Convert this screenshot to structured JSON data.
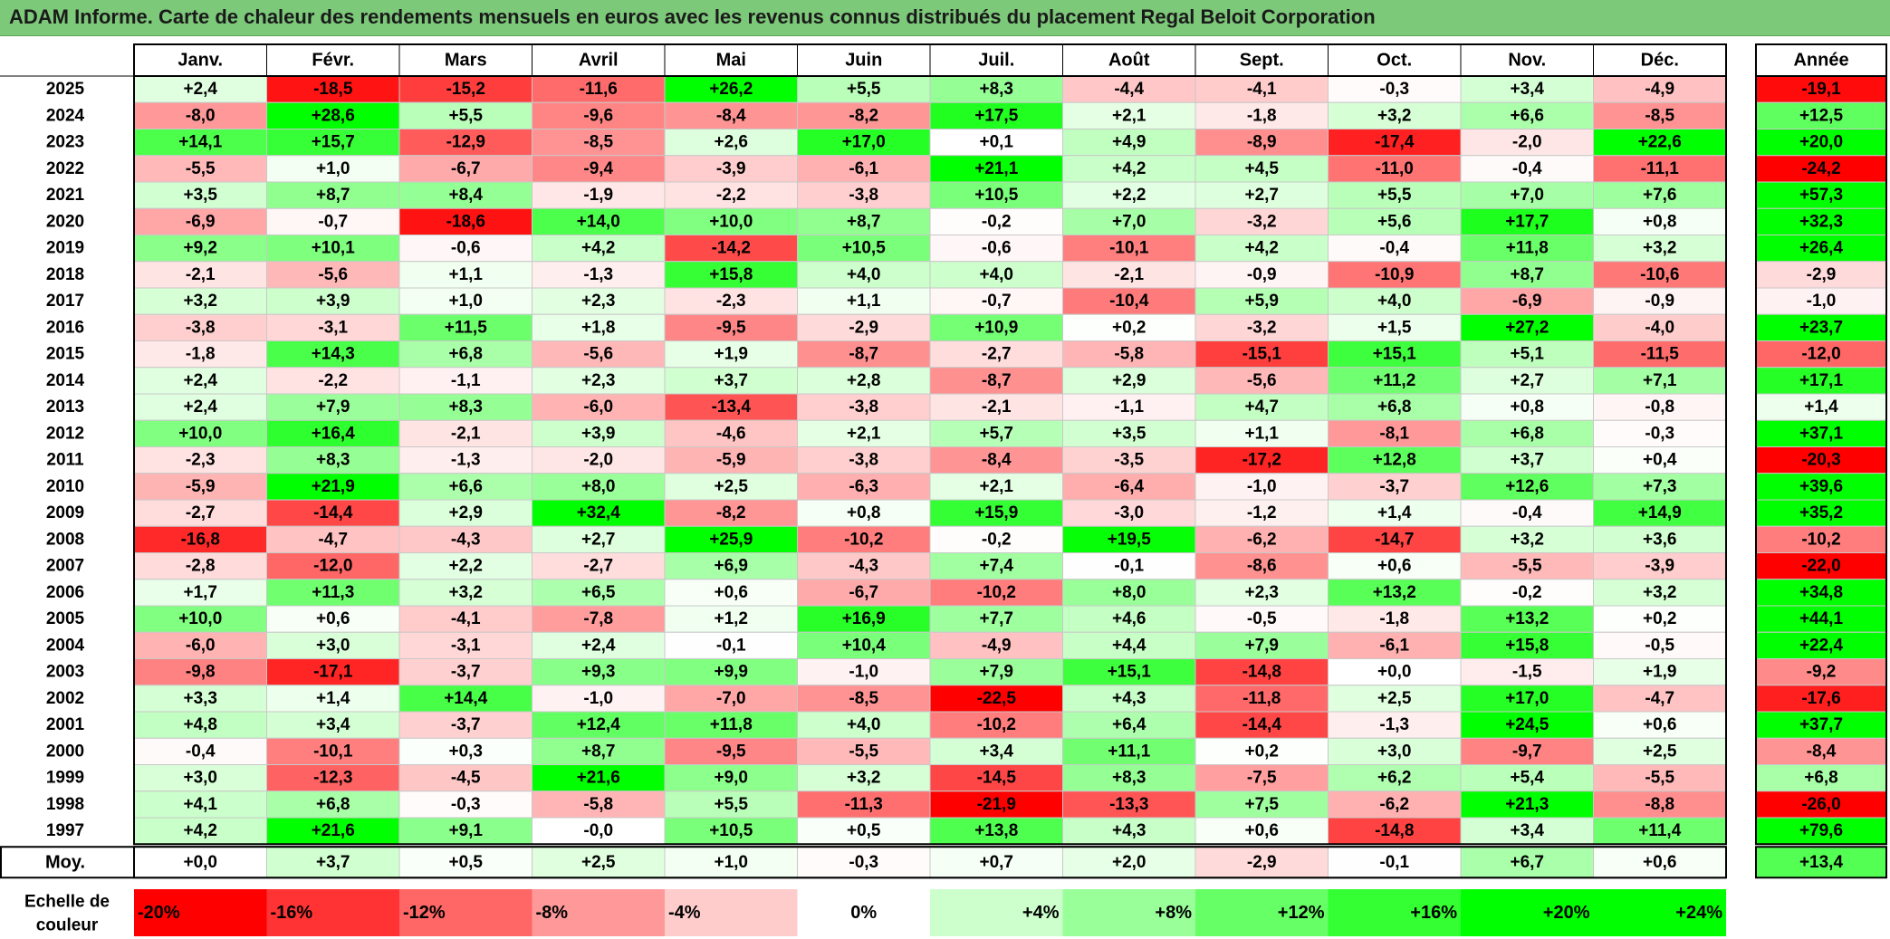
{
  "title": "ADAM Informe. Carte de chaleur des rendements mensuels en euros avec les revenus connus distribués du placement Regal Beloit Corporation",
  "colors": {
    "negative": "#ff0000",
    "neutral": "#ffffff",
    "positive": "#00ff00",
    "title_bg": "#7dc97a"
  },
  "chart_data": {
    "type": "heatmap",
    "months": [
      "Janv.",
      "Févr.",
      "Mars",
      "Avril",
      "Mai",
      "Juin",
      "Juil.",
      "Août",
      "Sept.",
      "Oct.",
      "Nov.",
      "Déc."
    ],
    "year_header": "Année",
    "average_label": "Moy.",
    "scale_label": [
      "Echelle de",
      "couleur"
    ],
    "rows": [
      {
        "year": "2025",
        "values": [
          "+2,4",
          "-18,5",
          "-15,2",
          "-11,6",
          "+26,2",
          "+5,5",
          "+8,3",
          "-4,4",
          "-4,1",
          "-0,3",
          "+3,4",
          "-4,9"
        ],
        "annual": "-19,1"
      },
      {
        "year": "2024",
        "values": [
          "-8,0",
          "+28,6",
          "+5,5",
          "-9,6",
          "-8,4",
          "-8,2",
          "+17,5",
          "+2,1",
          "-1,8",
          "+3,2",
          "+6,6",
          "-8,5"
        ],
        "annual": "+12,5"
      },
      {
        "year": "2023",
        "values": [
          "+14,1",
          "+15,7",
          "-12,9",
          "-8,5",
          "+2,6",
          "+17,0",
          "+0,1",
          "+4,9",
          "-8,9",
          "-17,4",
          "-2,0",
          "+22,6"
        ],
        "annual": "+20,0"
      },
      {
        "year": "2022",
        "values": [
          "-5,5",
          "+1,0",
          "-6,7",
          "-9,4",
          "-3,9",
          "-6,1",
          "+21,1",
          "+4,2",
          "+4,5",
          "-11,0",
          "-0,4",
          "-11,1"
        ],
        "annual": "-24,2"
      },
      {
        "year": "2021",
        "values": [
          "+3,5",
          "+8,7",
          "+8,4",
          "-1,9",
          "-2,2",
          "-3,8",
          "+10,5",
          "+2,2",
          "+2,7",
          "+5,5",
          "+7,0",
          "+7,6"
        ],
        "annual": "+57,3"
      },
      {
        "year": "2020",
        "values": [
          "-6,9",
          "-0,7",
          "-18,6",
          "+14,0",
          "+10,0",
          "+8,7",
          "-0,2",
          "+7,0",
          "-3,2",
          "+5,6",
          "+17,7",
          "+0,8"
        ],
        "annual": "+32,3"
      },
      {
        "year": "2019",
        "values": [
          "+9,2",
          "+10,1",
          "-0,6",
          "+4,2",
          "-14,2",
          "+10,5",
          "-0,6",
          "-10,1",
          "+4,2",
          "-0,4",
          "+11,8",
          "+3,2"
        ],
        "annual": "+26,4"
      },
      {
        "year": "2018",
        "values": [
          "-2,1",
          "-5,6",
          "+1,1",
          "-1,3",
          "+15,8",
          "+4,0",
          "+4,0",
          "-2,1",
          "-0,9",
          "-10,9",
          "+8,7",
          "-10,6"
        ],
        "annual": "-2,9"
      },
      {
        "year": "2017",
        "values": [
          "+3,2",
          "+3,9",
          "+1,0",
          "+2,3",
          "-2,3",
          "+1,1",
          "-0,7",
          "-10,4",
          "+5,9",
          "+4,0",
          "-6,9",
          "-0,9"
        ],
        "annual": "-1,0"
      },
      {
        "year": "2016",
        "values": [
          "-3,8",
          "-3,1",
          "+11,5",
          "+1,8",
          "-9,5",
          "-2,9",
          "+10,9",
          "+0,2",
          "-3,2",
          "+1,5",
          "+27,2",
          "-4,0"
        ],
        "annual": "+23,7"
      },
      {
        "year": "2015",
        "values": [
          "-1,8",
          "+14,3",
          "+6,8",
          "-5,6",
          "+1,9",
          "-8,7",
          "-2,7",
          "-5,8",
          "-15,1",
          "+15,1",
          "+5,1",
          "-11,5"
        ],
        "annual": "-12,0"
      },
      {
        "year": "2014",
        "values": [
          "+2,4",
          "-2,2",
          "-1,1",
          "+2,3",
          "+3,7",
          "+2,8",
          "-8,7",
          "+2,9",
          "-5,6",
          "+11,2",
          "+2,7",
          "+7,1"
        ],
        "annual": "+17,1"
      },
      {
        "year": "2013",
        "values": [
          "+2,4",
          "+7,9",
          "+8,3",
          "-6,0",
          "-13,4",
          "-3,8",
          "-2,1",
          "-1,1",
          "+4,7",
          "+6,8",
          "+0,8",
          "-0,8"
        ],
        "annual": "+1,4"
      },
      {
        "year": "2012",
        "values": [
          "+10,0",
          "+16,4",
          "-2,1",
          "+3,9",
          "-4,6",
          "+2,1",
          "+5,7",
          "+3,5",
          "+1,1",
          "-8,1",
          "+6,8",
          "-0,3"
        ],
        "annual": "+37,1"
      },
      {
        "year": "2011",
        "values": [
          "-2,3",
          "+8,3",
          "-1,3",
          "-2,0",
          "-5,9",
          "-3,8",
          "-8,4",
          "-3,5",
          "-17,2",
          "+12,8",
          "+3,7",
          "+0,4"
        ],
        "annual": "-20,3"
      },
      {
        "year": "2010",
        "values": [
          "-5,9",
          "+21,9",
          "+6,6",
          "+8,0",
          "+2,5",
          "-6,3",
          "+2,1",
          "-6,4",
          "-1,0",
          "-3,7",
          "+12,6",
          "+7,3"
        ],
        "annual": "+39,6"
      },
      {
        "year": "2009",
        "values": [
          "-2,7",
          "-14,4",
          "+2,9",
          "+32,4",
          "-8,2",
          "+0,8",
          "+15,9",
          "-3,0",
          "-1,2",
          "+1,4",
          "-0,4",
          "+14,9"
        ],
        "annual": "+35,2"
      },
      {
        "year": "2008",
        "values": [
          "-16,8",
          "-4,7",
          "-4,3",
          "+2,7",
          "+25,9",
          "-10,2",
          "-0,2",
          "+19,5",
          "-6,2",
          "-14,7",
          "+3,2",
          "+3,6"
        ],
        "annual": "-10,2"
      },
      {
        "year": "2007",
        "values": [
          "-2,8",
          "-12,0",
          "+2,2",
          "-2,7",
          "+6,9",
          "-4,3",
          "+7,4",
          "-0,1",
          "-8,6",
          "+0,6",
          "-5,5",
          "-3,9"
        ],
        "annual": "-22,0"
      },
      {
        "year": "2006",
        "values": [
          "+1,7",
          "+11,3",
          "+3,2",
          "+6,5",
          "+0,6",
          "-6,7",
          "-10,2",
          "+8,0",
          "+2,3",
          "+13,2",
          "-0,2",
          "+3,2"
        ],
        "annual": "+34,8"
      },
      {
        "year": "2005",
        "values": [
          "+10,0",
          "+0,6",
          "-4,1",
          "-7,8",
          "+1,2",
          "+16,9",
          "+7,7",
          "+4,6",
          "-0,5",
          "-1,8",
          "+13,2",
          "+0,2"
        ],
        "annual": "+44,1"
      },
      {
        "year": "2004",
        "values": [
          "-6,0",
          "+3,0",
          "-3,1",
          "+2,4",
          "-0,1",
          "+10,4",
          "-4,9",
          "+4,4",
          "+7,9",
          "-6,1",
          "+15,8",
          "-0,5"
        ],
        "annual": "+22,4"
      },
      {
        "year": "2003",
        "values": [
          "-9,8",
          "-17,1",
          "-3,7",
          "+9,3",
          "+9,9",
          "-1,0",
          "+7,9",
          "+15,1",
          "-14,8",
          "+0,0",
          "-1,5",
          "+1,9"
        ],
        "annual": "-9,2"
      },
      {
        "year": "2002",
        "values": [
          "+3,3",
          "+1,4",
          "+14,4",
          "-1,0",
          "-7,0",
          "-8,5",
          "-22,5",
          "+4,3",
          "-11,8",
          "+2,5",
          "+17,0",
          "-4,7"
        ],
        "annual": "-17,6"
      },
      {
        "year": "2001",
        "values": [
          "+4,8",
          "+3,4",
          "-3,7",
          "+12,4",
          "+11,8",
          "+4,0",
          "-10,2",
          "+6,4",
          "-14,4",
          "-1,3",
          "+24,5",
          "+0,6"
        ],
        "annual": "+37,7"
      },
      {
        "year": "2000",
        "values": [
          "-0,4",
          "-10,1",
          "+0,3",
          "+8,7",
          "-9,5",
          "-5,5",
          "+3,4",
          "+11,1",
          "+0,2",
          "+3,0",
          "-9,7",
          "+2,5"
        ],
        "annual": "-8,4"
      },
      {
        "year": "1999",
        "values": [
          "+3,0",
          "-12,3",
          "-4,5",
          "+21,6",
          "+9,0",
          "+3,2",
          "-14,5",
          "+8,3",
          "-7,5",
          "+6,2",
          "+5,4",
          "-5,5"
        ],
        "annual": "+6,8"
      },
      {
        "year": "1998",
        "values": [
          "+4,1",
          "+6,8",
          "-0,3",
          "-5,8",
          "+5,5",
          "-11,3",
          "-21,9",
          "-13,3",
          "+7,5",
          "-6,2",
          "+21,3",
          "-8,8"
        ],
        "annual": "-26,0"
      },
      {
        "year": "1997",
        "values": [
          "+4,2",
          "+21,6",
          "+9,1",
          "-0,0",
          "+10,5",
          "+0,5",
          "+13,8",
          "+4,3",
          "+0,6",
          "-14,8",
          "+3,4",
          "+11,4"
        ],
        "annual": "+79,6"
      }
    ],
    "average": {
      "values": [
        "+0,0",
        "+3,7",
        "+0,5",
        "+2,5",
        "+1,0",
        "-0,3",
        "+0,7",
        "+2,0",
        "-2,9",
        "-0,1",
        "+6,7",
        "+0,6"
      ],
      "annual": "+13,4"
    },
    "scale": [
      "-20%",
      "-16%",
      "-12%",
      "-8%",
      "-4%",
      "0%",
      "+4%",
      "+8%",
      "+12%",
      "+16%",
      "+20%",
      "+24%"
    ]
  }
}
